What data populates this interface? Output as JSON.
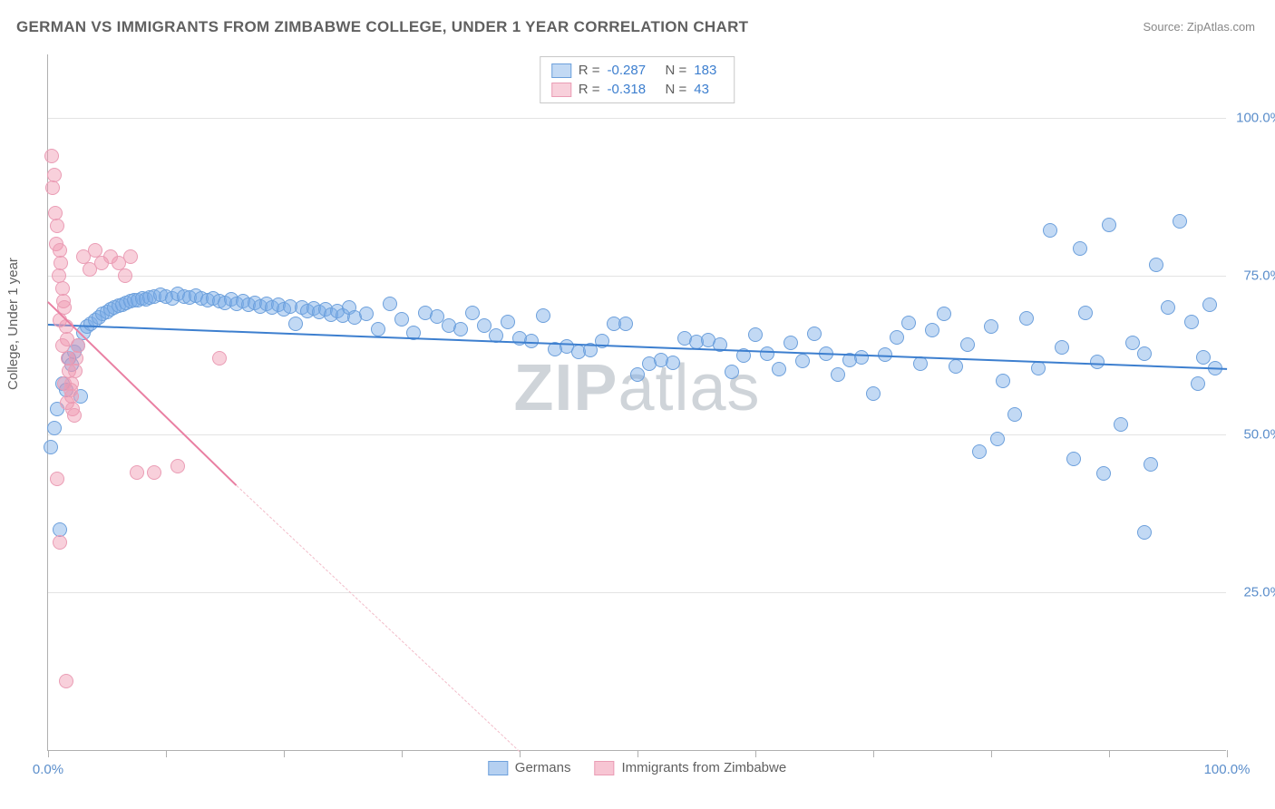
{
  "title": "GERMAN VS IMMIGRANTS FROM ZIMBABWE COLLEGE, UNDER 1 YEAR CORRELATION CHART",
  "source": "Source: ZipAtlas.com",
  "ylabel": "College, Under 1 year",
  "watermark_a": "ZIP",
  "watermark_b": "atlas",
  "chart": {
    "type": "scatter",
    "xlim": [
      0,
      100
    ],
    "ylim": [
      0,
      110
    ],
    "background_color": "#ffffff",
    "grid_color": "#e3e3e3",
    "axis_color": "#b0b0b0",
    "yticks": [
      25.0,
      50.0,
      75.0,
      100.0
    ],
    "ytick_labels": [
      "25.0%",
      "50.0%",
      "75.0%",
      "100.0%"
    ],
    "xticks": [
      0,
      10,
      20,
      30,
      40,
      50,
      60,
      70,
      80,
      90,
      100
    ],
    "x_axis_labels": {
      "left": "0.0%",
      "right": "100.0%"
    },
    "tick_label_color": "#5b8ecb",
    "tick_label_fontsize": 15,
    "series": [
      {
        "name": "Germans",
        "color_fill": "rgba(120,170,230,0.45)",
        "color_stroke": "#6da0dc",
        "marker_radius": 8,
        "regression": {
          "x1": 0,
          "y1": 67.5,
          "x2": 100,
          "y2": 60.5,
          "color": "#3d7fcf",
          "width": 2
        },
        "R": "-0.287",
        "N": "183",
        "points": [
          [
            0.2,
            48
          ],
          [
            0.5,
            51
          ],
          [
            0.8,
            54
          ],
          [
            1.0,
            35
          ],
          [
            1.2,
            58
          ],
          [
            1.5,
            57
          ],
          [
            1.8,
            62
          ],
          [
            2.0,
            61
          ],
          [
            2.2,
            63
          ],
          [
            2.5,
            64
          ],
          [
            2.8,
            56
          ],
          [
            3.0,
            66
          ],
          [
            3.3,
            67
          ],
          [
            3.6,
            67.5
          ],
          [
            4.0,
            68
          ],
          [
            4.3,
            68.5
          ],
          [
            4.6,
            69
          ],
          [
            5.0,
            69.3
          ],
          [
            5.3,
            69.8
          ],
          [
            5.6,
            70
          ],
          [
            6.0,
            70.3
          ],
          [
            6.3,
            70.5
          ],
          [
            6.6,
            70.8
          ],
          [
            7.0,
            71
          ],
          [
            7.3,
            71.2
          ],
          [
            7.6,
            71.2
          ],
          [
            8.0,
            71.5
          ],
          [
            8.3,
            71.3
          ],
          [
            8.6,
            71.6
          ],
          [
            9.0,
            71.8
          ],
          [
            9.5,
            72
          ],
          [
            10,
            71.7
          ],
          [
            10.5,
            71.5
          ],
          [
            11,
            72.2
          ],
          [
            11.5,
            71.8
          ],
          [
            12,
            71.6
          ],
          [
            12.5,
            71.9
          ],
          [
            13,
            71.4
          ],
          [
            13.5,
            71.2
          ],
          [
            14,
            71.5
          ],
          [
            14.5,
            71.1
          ],
          [
            15,
            70.8
          ],
          [
            15.5,
            71.3
          ],
          [
            16,
            70.6
          ],
          [
            16.5,
            71
          ],
          [
            17,
            70.4
          ],
          [
            17.5,
            70.8
          ],
          [
            18,
            70.2
          ],
          [
            18.5,
            70.6
          ],
          [
            19,
            70
          ],
          [
            19.5,
            70.5
          ],
          [
            20,
            69.8
          ],
          [
            20.5,
            70.2
          ],
          [
            21,
            67.4
          ],
          [
            21.5,
            70.1
          ],
          [
            22,
            69.5
          ],
          [
            22.5,
            69.9
          ],
          [
            23,
            69.3
          ],
          [
            23.5,
            69.7
          ],
          [
            24,
            68.9
          ],
          [
            24.5,
            69.4
          ],
          [
            25,
            68.7
          ],
          [
            25.5,
            70.1
          ],
          [
            26,
            68.4
          ],
          [
            27,
            69.1
          ],
          [
            28,
            66.6
          ],
          [
            29,
            70.6
          ],
          [
            30,
            68.2
          ],
          [
            31,
            66
          ],
          [
            32,
            69.2
          ],
          [
            33,
            68.6
          ],
          [
            34,
            67.2
          ],
          [
            35,
            66.6
          ],
          [
            36,
            69.2
          ],
          [
            37,
            67.2
          ],
          [
            38,
            65.6
          ],
          [
            39,
            67.8
          ],
          [
            40,
            65.1
          ],
          [
            41,
            64.8
          ],
          [
            42,
            68.8
          ],
          [
            43,
            63.5
          ],
          [
            44,
            63.9
          ],
          [
            45,
            63
          ],
          [
            46,
            63.3
          ],
          [
            47,
            64.8
          ],
          [
            48,
            67.5
          ],
          [
            49,
            67.4
          ],
          [
            50,
            59.5
          ],
          [
            51,
            61.1
          ],
          [
            52,
            61.8
          ],
          [
            53,
            61.3
          ],
          [
            54,
            65.2
          ],
          [
            55,
            64.6
          ],
          [
            56,
            64.9
          ],
          [
            57,
            64.1
          ],
          [
            58,
            59.8
          ],
          [
            59,
            62.5
          ],
          [
            60,
            65.7
          ],
          [
            61,
            62.8
          ],
          [
            62,
            60.3
          ],
          [
            63,
            64.5
          ],
          [
            64,
            61.6
          ],
          [
            65,
            65.9
          ],
          [
            66,
            62.7
          ],
          [
            67,
            59.5
          ],
          [
            68,
            61.8
          ],
          [
            69,
            62.1
          ],
          [
            70,
            56.4
          ],
          [
            71,
            62.6
          ],
          [
            72,
            65.3
          ],
          [
            73,
            67.6
          ],
          [
            74,
            61.1
          ],
          [
            75,
            66.4
          ],
          [
            76,
            69.1
          ],
          [
            77,
            60.7
          ],
          [
            78,
            64.2
          ],
          [
            79,
            47.2
          ],
          [
            80,
            67
          ],
          [
            81,
            58.5
          ],
          [
            80.5,
            49.2
          ],
          [
            82,
            53.2
          ],
          [
            83,
            68.3
          ],
          [
            84,
            60.5
          ],
          [
            85,
            82.2
          ],
          [
            86,
            63.7
          ],
          [
            87,
            46.1
          ],
          [
            87.5,
            79.4
          ],
          [
            88,
            69.2
          ],
          [
            89,
            61.4
          ],
          [
            89.5,
            43.8
          ],
          [
            90,
            83.1
          ],
          [
            91,
            51.5
          ],
          [
            92,
            64.5
          ],
          [
            93,
            62.7
          ],
          [
            94,
            76.8
          ],
          [
            93.5,
            45.3
          ],
          [
            95,
            70.1
          ],
          [
            96,
            83.7
          ],
          [
            97,
            67.8
          ],
          [
            97.5,
            58
          ],
          [
            98,
            62.2
          ],
          [
            98.5,
            70.4
          ],
          [
            99,
            60.5
          ],
          [
            93,
            34.5
          ]
        ]
      },
      {
        "name": "Immigrants from Zimbabwe",
        "color_fill": "rgba(240,150,175,0.45)",
        "color_stroke": "#ea9db5",
        "marker_radius": 8,
        "regression": {
          "x1": 0,
          "y1": 71,
          "x2": 16,
          "y2": 42,
          "color": "#e97fa2",
          "width": 1.5
        },
        "regression_dashed": {
          "x1": 16,
          "y1": 42,
          "x2": 40,
          "y2": 0,
          "color": "#f2bcc9"
        },
        "R": "-0.318",
        "N": "43",
        "points": [
          [
            0.3,
            94
          ],
          [
            0.5,
            91
          ],
          [
            0.4,
            89
          ],
          [
            0.6,
            85
          ],
          [
            0.8,
            83
          ],
          [
            0.7,
            80
          ],
          [
            1.0,
            79
          ],
          [
            1.1,
            77
          ],
          [
            0.9,
            75
          ],
          [
            1.2,
            73
          ],
          [
            1.3,
            71
          ],
          [
            1.4,
            70
          ],
          [
            1.0,
            68
          ],
          [
            1.5,
            67
          ],
          [
            1.6,
            65
          ],
          [
            1.2,
            64
          ],
          [
            1.7,
            62
          ],
          [
            1.8,
            60
          ],
          [
            1.4,
            58
          ],
          [
            1.9,
            57
          ],
          [
            2.0,
            56
          ],
          [
            1.6,
            55
          ],
          [
            2.1,
            54
          ],
          [
            2.2,
            53
          ],
          [
            2.0,
            58
          ],
          [
            2.3,
            60
          ],
          [
            2.4,
            62
          ],
          [
            2.5,
            64
          ],
          [
            3.0,
            78
          ],
          [
            3.5,
            76
          ],
          [
            4.0,
            79
          ],
          [
            4.5,
            77
          ],
          [
            6.0,
            77
          ],
          [
            7.0,
            78
          ],
          [
            0.8,
            43
          ],
          [
            1.0,
            33
          ],
          [
            7.5,
            44
          ],
          [
            9.0,
            44
          ],
          [
            11.0,
            45
          ],
          [
            1.5,
            11
          ],
          [
            14.5,
            62
          ],
          [
            6.5,
            75
          ],
          [
            5.3,
            78
          ]
        ]
      }
    ]
  },
  "stats_box": {
    "rows": [
      {
        "swatch_fill": "rgba(120,170,230,0.45)",
        "swatch_stroke": "#6da0dc",
        "R": "-0.287",
        "N": "183"
      },
      {
        "swatch_fill": "rgba(240,150,175,0.45)",
        "swatch_stroke": "#ea9db5",
        "R": "-0.318",
        "N": "43"
      }
    ]
  },
  "legend": {
    "items": [
      {
        "swatch_fill": "rgba(120,170,230,0.55)",
        "swatch_stroke": "#6da0dc",
        "label": "Germans"
      },
      {
        "swatch_fill": "rgba(240,150,175,0.55)",
        "swatch_stroke": "#ea9db5",
        "label": "Immigrants from Zimbabwe"
      }
    ]
  }
}
